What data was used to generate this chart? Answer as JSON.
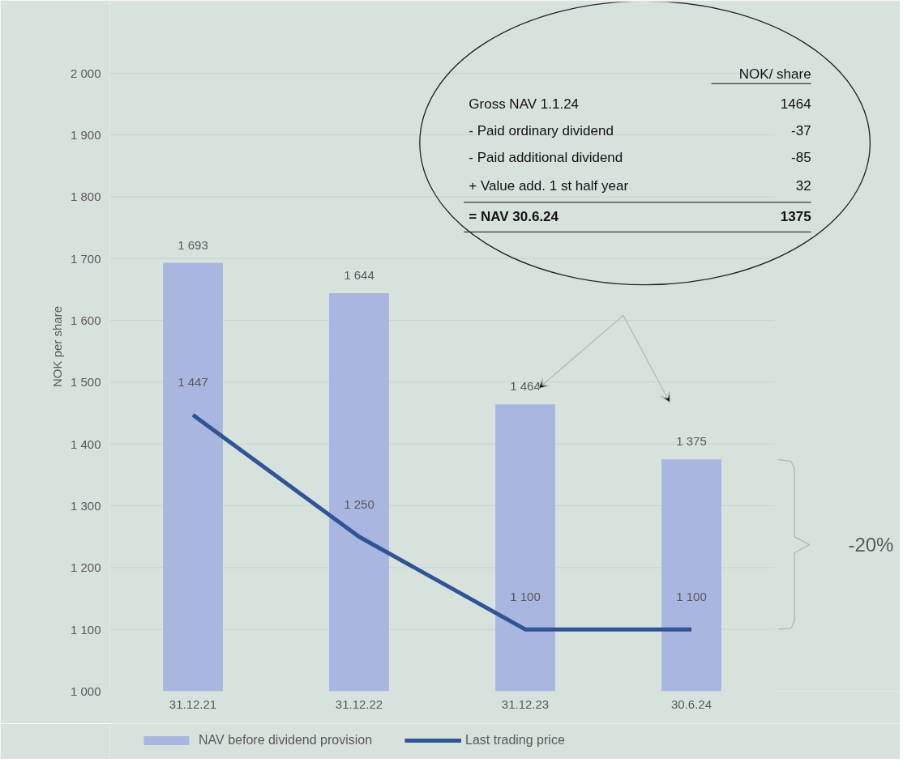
{
  "chart_data": {
    "type": "bar",
    "ylabel": "NOK per share",
    "categories": [
      "31.12.21",
      "31.12.22",
      "31.12.23",
      "30.6.24"
    ],
    "series": [
      {
        "name": "NAV before dividend provision",
        "color": "#a9b6e0",
        "values": [
          1693,
          1644,
          1464,
          1375
        ],
        "value_labels": [
          "1 693",
          "1 644",
          "1 464",
          "1 375"
        ]
      },
      {
        "name": "Last trading price",
        "type": "line",
        "color": "#2f5597",
        "values": [
          1447,
          1250,
          1100,
          1100
        ],
        "value_labels": [
          "1 447",
          "1 250",
          "1 100",
          "1 100"
        ]
      }
    ],
    "ylim": [
      1000,
      2115
    ],
    "yticks": [
      {
        "value": 1000,
        "label": "1 000"
      },
      {
        "value": 1100,
        "label": "1 100"
      },
      {
        "value": 1200,
        "label": "1 200"
      },
      {
        "value": 1300,
        "label": "1 300"
      },
      {
        "value": 1400,
        "label": "1 400"
      },
      {
        "value": 1500,
        "label": "1 500"
      },
      {
        "value": 1600,
        "label": "1 600"
      },
      {
        "value": 1700,
        "label": "1 700"
      },
      {
        "value": 1800,
        "label": "1 800"
      },
      {
        "value": 1900,
        "label": "1 900"
      },
      {
        "value": 2000,
        "label": "2 000"
      }
    ],
    "grid": "y",
    "legend": "bottom",
    "annotations": [
      "NOK/ share",
      "Gross NAV 1.1.24",
      "1464",
      "- Paid ordinary dividend",
      "-37",
      "- Paid additional dividend",
      "-85",
      " + Value add. 1 st half year",
      "32",
      "= NAV 30.6.24",
      "1375",
      "-20%"
    ]
  }
}
